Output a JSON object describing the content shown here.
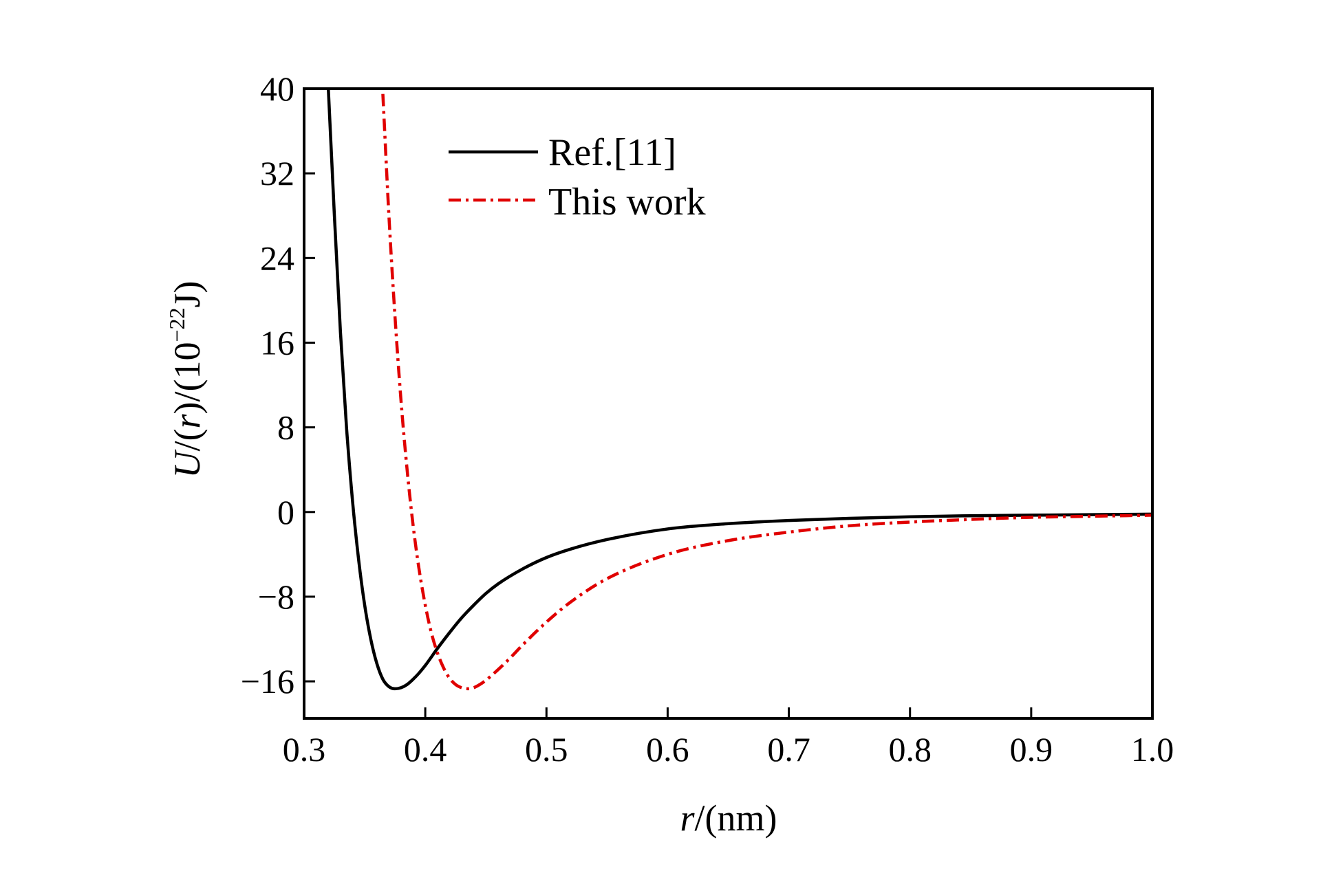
{
  "chart_data": {
    "type": "line",
    "title": "",
    "xlabel_var": "r",
    "xlabel_unit": "/(nm)",
    "ylabel_var1": "U",
    "ylabel_mid1": "/(",
    "ylabel_var2": "r",
    "ylabel_mid2": ")/(10",
    "ylabel_exp": "−22",
    "ylabel_end": "J)",
    "xlim": [
      0.3,
      1.0
    ],
    "ylim": [
      -19.5,
      40
    ],
    "xticks": [
      0.3,
      0.4,
      0.5,
      0.6,
      0.7,
      0.8,
      0.9,
      1.0
    ],
    "xtick_labels": [
      "0.3",
      "0.4",
      "0.5",
      "0.6",
      "0.7",
      "0.8",
      "0.9",
      "1.0"
    ],
    "yticks": [
      -16,
      -8,
      0,
      8,
      16,
      24,
      32,
      40
    ],
    "ytick_labels": [
      "−16",
      "−8",
      "0",
      "8",
      "16",
      "24",
      "32",
      "40"
    ],
    "grid": false,
    "legend_position": "top-left",
    "series": [
      {
        "name": "Ref.[11]",
        "color": "#000000",
        "style": "solid",
        "x": [
          0.32,
          0.325,
          0.33,
          0.335,
          0.34,
          0.345,
          0.35,
          0.355,
          0.36,
          0.365,
          0.37,
          0.375,
          0.38,
          0.385,
          0.39,
          0.395,
          0.4,
          0.41,
          0.42,
          0.43,
          0.44,
          0.45,
          0.46,
          0.48,
          0.5,
          0.52,
          0.55,
          0.6,
          0.65,
          0.7,
          0.75,
          0.8,
          0.85,
          0.9,
          0.95,
          1.0
        ],
        "y": [
          40,
          28,
          17,
          8,
          1,
          -4.5,
          -8.8,
          -12,
          -14.3,
          -15.8,
          -16.5,
          -16.7,
          -16.6,
          -16.3,
          -15.8,
          -15.2,
          -14.5,
          -12.9,
          -11.4,
          -10,
          -8.8,
          -7.7,
          -6.8,
          -5.4,
          -4.3,
          -3.5,
          -2.6,
          -1.6,
          -1.1,
          -0.8,
          -0.6,
          -0.45,
          -0.35,
          -0.3,
          -0.25,
          -0.2
        ]
      },
      {
        "name": "This work",
        "color": "#e00000",
        "style": "dash-dot",
        "x": [
          0.365,
          0.37,
          0.375,
          0.38,
          0.385,
          0.39,
          0.395,
          0.4,
          0.405,
          0.41,
          0.415,
          0.42,
          0.425,
          0.43,
          0.435,
          0.44,
          0.445,
          0.45,
          0.46,
          0.47,
          0.48,
          0.5,
          0.52,
          0.55,
          0.6,
          0.65,
          0.7,
          0.75,
          0.8,
          0.85,
          0.9,
          0.95,
          1.0
        ],
        "y": [
          39.5,
          28,
          18.5,
          10.5,
          4,
          -1.3,
          -5.5,
          -8.8,
          -11.4,
          -13.3,
          -14.7,
          -15.7,
          -16.3,
          -16.6,
          -16.7,
          -16.6,
          -16.3,
          -15.9,
          -14.9,
          -13.8,
          -12.6,
          -10.4,
          -8.5,
          -6.3,
          -4,
          -2.7,
          -1.9,
          -1.3,
          -0.95,
          -0.7,
          -0.5,
          -0.4,
          -0.3
        ]
      }
    ]
  }
}
